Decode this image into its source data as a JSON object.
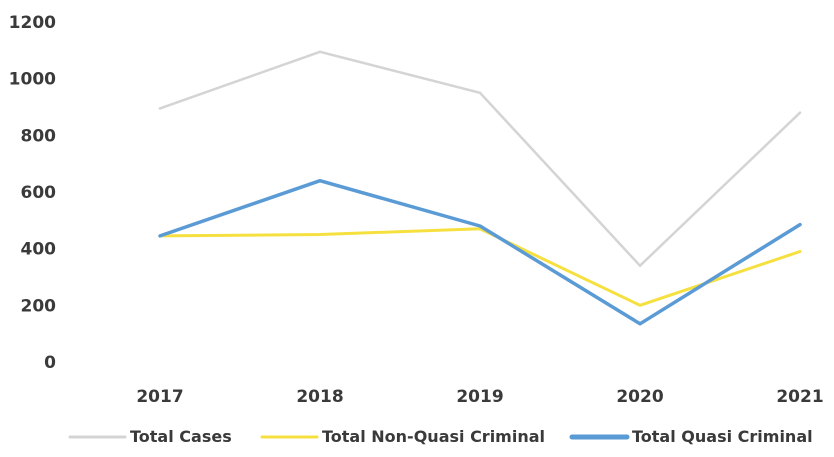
{
  "chart_data": {
    "type": "line",
    "x": [
      "2017",
      "2018",
      "2019",
      "2020",
      "2021"
    ],
    "ylim": [
      0,
      1200
    ],
    "yticks": [
      0,
      200,
      400,
      600,
      800,
      1000,
      1200
    ],
    "grid": false,
    "legend_position": "bottom",
    "series": [
      {
        "name": "Total Cases",
        "color": "#d4d4d4",
        "values": [
          895,
          1095,
          950,
          340,
          880
        ]
      },
      {
        "name": "Total Non-Quasi Criminal",
        "color": "#f6e040",
        "values": [
          445,
          450,
          470,
          200,
          390
        ]
      },
      {
        "name": "Total Quasi Criminal",
        "color": "#5b9bd5",
        "values": [
          445,
          640,
          480,
          135,
          485
        ]
      }
    ]
  }
}
